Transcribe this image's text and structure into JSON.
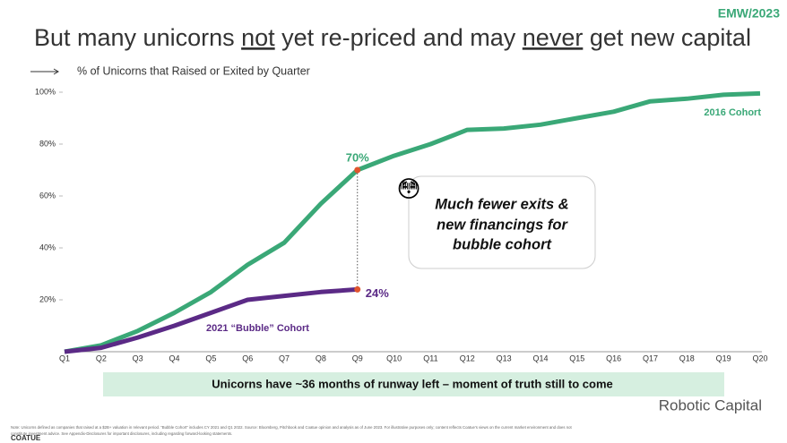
{
  "corner_label": "EMW/2023",
  "title": [
    {
      "text": "But many unicorns "
    },
    {
      "text": "not",
      "underline": true
    },
    {
      "text": " yet re-priced and may "
    },
    {
      "text": "never",
      "underline": true
    },
    {
      "text": " get new capital"
    }
  ],
  "chart_data": {
    "type": "line",
    "subtitle": "% of Unicorns that Raised or Exited by Quarter",
    "categories": [
      "Q1",
      "Q2",
      "Q3",
      "Q4",
      "Q5",
      "Q6",
      "Q7",
      "Q8",
      "Q9",
      "Q10",
      "Q11",
      "Q12",
      "Q13",
      "Q14",
      "Q15",
      "Q16",
      "Q17",
      "Q18",
      "Q19",
      "Q20"
    ],
    "series": [
      {
        "name": "2016 Cohort",
        "color": "#3aa877",
        "values": [
          0,
          2.5,
          8,
          15,
          23,
          33.5,
          42,
          57,
          70,
          75.5,
          80,
          85.5,
          86,
          87.5,
          90,
          92.5,
          96.5,
          97.5,
          99,
          99.5
        ],
        "value_labels": [
          null,
          null,
          null,
          null,
          null,
          null,
          null,
          null,
          "70%",
          null,
          null,
          null,
          null,
          null,
          null,
          null,
          null,
          null,
          null,
          null
        ]
      },
      {
        "name": "2021 “Bubble” Cohort",
        "color": "#5b2a86",
        "values": [
          0,
          1.5,
          5.5,
          10,
          15,
          20,
          21.5,
          23,
          24,
          null,
          null,
          null,
          null,
          null,
          null,
          null,
          null,
          null,
          null,
          null
        ],
        "value_labels": [
          null,
          null,
          null,
          null,
          null,
          null,
          null,
          null,
          "24%",
          null,
          null,
          null,
          null,
          null,
          null,
          null,
          null,
          null,
          null,
          null
        ]
      }
    ],
    "highlight_color": "#e0552e",
    "ylim": [
      0,
      100
    ],
    "yticks": [
      {
        "value": 20,
        "label": "20%"
      },
      {
        "value": 40,
        "label": "40%"
      },
      {
        "value": 60,
        "label": "60%"
      },
      {
        "value": 80,
        "label": "80%"
      },
      {
        "value": 100,
        "label": "100%"
      }
    ],
    "grid": false
  },
  "callout": {
    "emoji": "😳",
    "text": [
      "Much fewer exits &",
      "new financings for",
      "bubble cohort"
    ]
  },
  "banner": "Unicorns have ~36 months of runway left – moment of truth still to come",
  "footnote": [
    "Note: Unicorns defined as companies that raised at a $2B+ valuation in relevant period. “Bubble Cohort” includes CY 2021 and Q1 2022. Source: Bloomberg, Pitchbook and Coatue opinion and analysis as of June 2023. For illustrative purposes only; content reflects Coatue's views on the current market environment and does not",
    "constitute investment advice. See Appendix-Disclosures for important disclosures, including regarding forward-looking statements."
  ],
  "logo": "COATUE",
  "watermark": "Robotic Capital"
}
